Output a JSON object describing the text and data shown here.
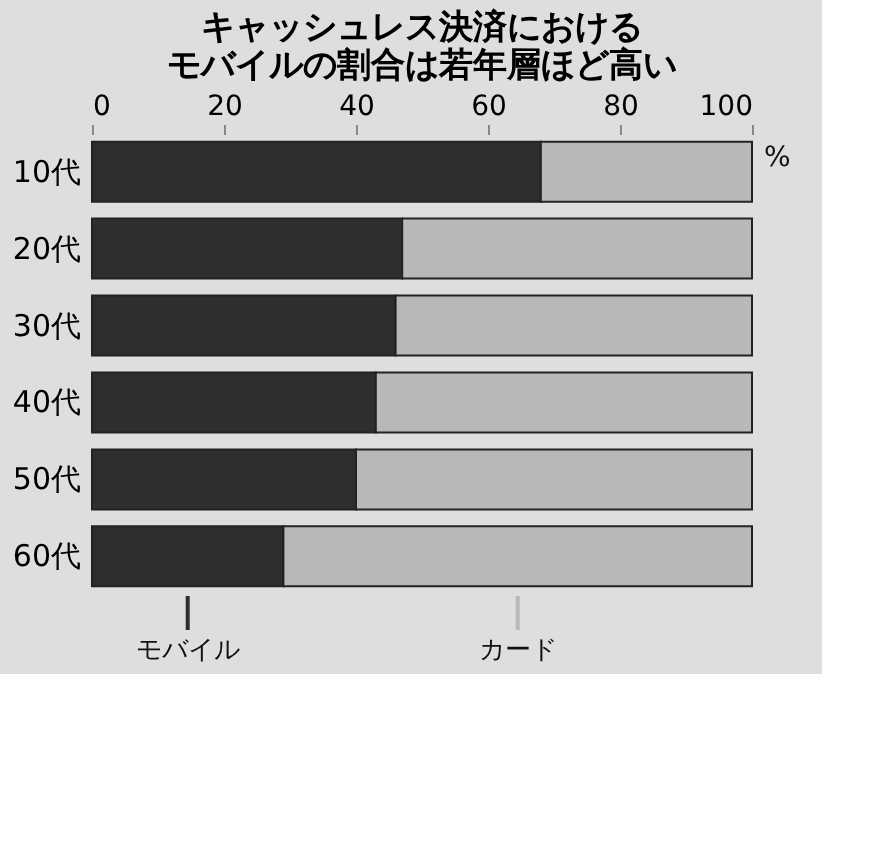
{
  "chart_data": {
    "type": "bar",
    "orientation": "horizontal",
    "stacked": true,
    "title": "キャッシュレス決済におけるモバイルの割合は若年層ほど高い",
    "xlabel": "%",
    "categories": [
      "10代",
      "20代",
      "30代",
      "40代",
      "50代",
      "60代"
    ],
    "series": [
      {
        "name": "モバイル",
        "color": "#2e2e2e",
        "values": [
          68,
          47,
          46,
          43,
          40,
          29
        ]
      },
      {
        "name": "カード",
        "color": "#b8b8b8",
        "values": [
          32,
          53,
          54,
          57,
          60,
          71
        ]
      }
    ],
    "xlim": [
      0,
      100
    ],
    "xticks": [
      0,
      20,
      40,
      60,
      80,
      100
    ],
    "legend": "bottom"
  }
}
